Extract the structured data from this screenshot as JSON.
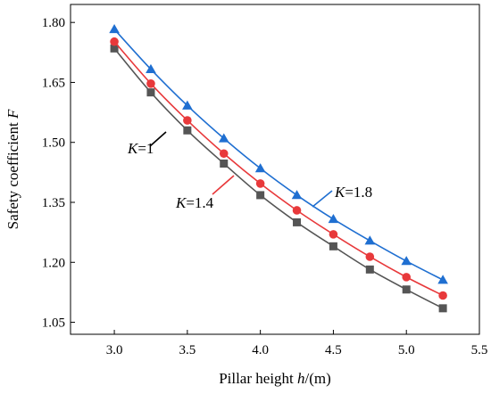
{
  "chart_data": {
    "type": "line",
    "title": "",
    "xlabel": {
      "prefix": "Pillar height ",
      "italic": "h",
      "suffix": "/(m)"
    },
    "ylabel": {
      "prefix": "Safety coefficient ",
      "italic": "F"
    },
    "xlim": [
      2.7,
      5.5
    ],
    "ylim": [
      1.02,
      1.845
    ],
    "xticks": [
      "3.0",
      "3.5",
      "4.0",
      "4.5",
      "5.0",
      "5.5"
    ],
    "yticks": [
      "1.05",
      "1.20",
      "1.35",
      "1.50",
      "1.65",
      "1.80"
    ],
    "grid": false,
    "x": [
      3.0,
      3.25,
      3.5,
      3.75,
      4.0,
      4.25,
      4.5,
      4.75,
      5.0,
      5.25
    ],
    "series": [
      {
        "name": "K=1",
        "values": [
          1.735,
          1.625,
          1.53,
          1.447,
          1.368,
          1.3,
          1.24,
          1.182,
          1.132,
          1.085
        ],
        "color": "#555555",
        "marker": "square"
      },
      {
        "name": "K=1.4",
        "values": [
          1.752,
          1.647,
          1.555,
          1.472,
          1.397,
          1.33,
          1.27,
          1.214,
          1.163,
          1.117
        ],
        "color": "#e8393b",
        "marker": "circle"
      },
      {
        "name": "K=1.8",
        "values": [
          1.783,
          1.683,
          1.592,
          1.51,
          1.435,
          1.368,
          1.308,
          1.254,
          1.203,
          1.156
        ],
        "color": "#1f6fd1",
        "marker": "triangle"
      }
    ],
    "annotations": [
      {
        "series": "K=1",
        "italic": "K",
        "text": "=1",
        "pointer_color": "#000000"
      },
      {
        "series": "K=1.4",
        "italic": "K",
        "text": "=1.4",
        "pointer_color": "#e8393b"
      },
      {
        "series": "K=1.8",
        "italic": "K",
        "text": "=1.8",
        "pointer_color": "#1f6fd1"
      }
    ]
  }
}
